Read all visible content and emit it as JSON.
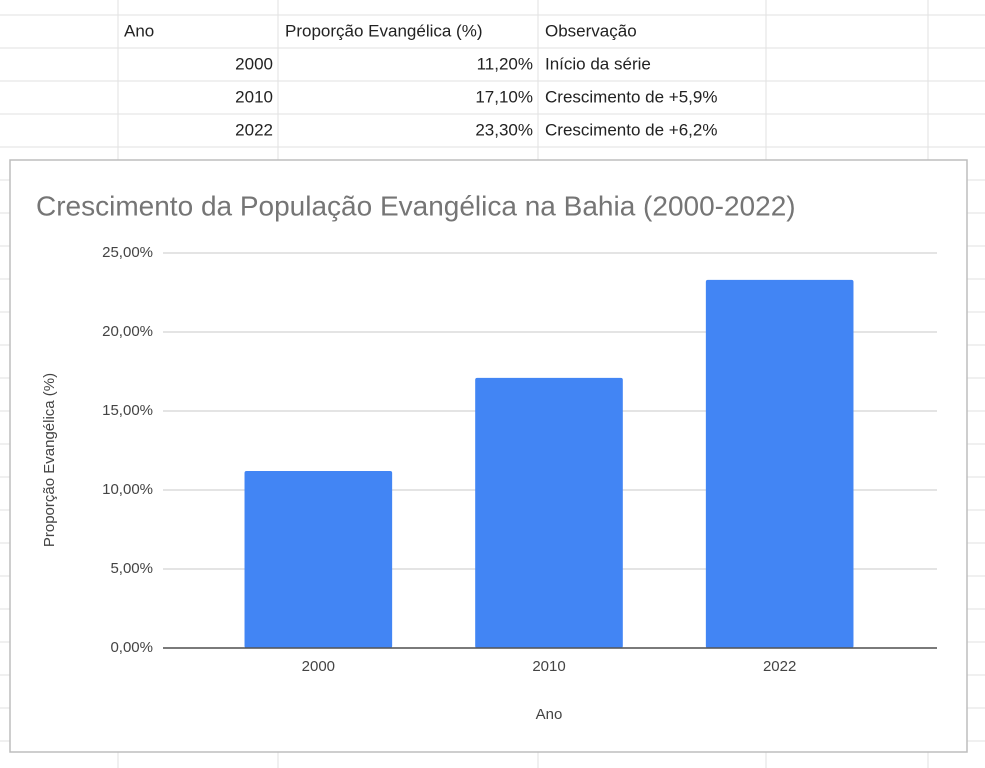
{
  "table": {
    "header": [
      "Ano",
      "Proporção Evangélica (%)",
      "Observação"
    ],
    "rows": [
      [
        "2000",
        "11,20%",
        "Início da série"
      ],
      [
        "2010",
        "17,10%",
        "Crescimento de +5,9%"
      ],
      [
        "2022",
        "23,30%",
        "Crescimento de +6,2%"
      ]
    ]
  },
  "chart_data": {
    "type": "bar",
    "title": "Crescimento da População Evangélica na Bahia (2000-2022)",
    "x_label": "Ano",
    "y_label": "Proporção Evangélica (%)",
    "categories": [
      "2000",
      "2010",
      "2022"
    ],
    "values": [
      11.2,
      17.1,
      23.3
    ],
    "color": "#4285f4",
    "ylim": [
      0,
      25
    ],
    "yticks": [
      {
        "value": 0,
        "label": "0,00%"
      },
      {
        "value": 5,
        "label": "5,00%"
      },
      {
        "value": 10,
        "label": "10,00%"
      },
      {
        "value": 15,
        "label": "15,00%"
      },
      {
        "value": 20,
        "label": "20,00%"
      },
      {
        "value": 25,
        "label": "25,00%"
      }
    ],
    "grid": true
  }
}
